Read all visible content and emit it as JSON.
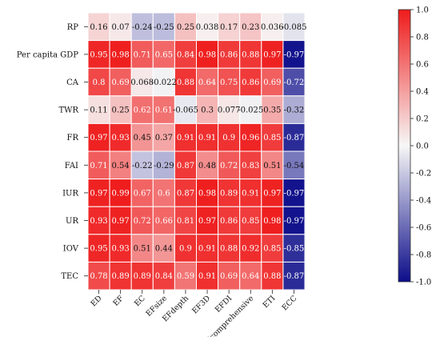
{
  "chart_data": {
    "type": "heatmap",
    "title": "",
    "x_labels": [
      "ED",
      "EF",
      "EC",
      "EFsize",
      "EFdepth",
      "EF3D",
      "EFDI",
      "Icomprehensive",
      "ETI",
      "ECC"
    ],
    "y_labels": [
      "RP",
      "Per capita GDP",
      "CA",
      "TWR",
      "FR",
      "FAI",
      "IUR",
      "UR",
      "IOV",
      "TEC"
    ],
    "values": [
      [
        0.16,
        0.07,
        -0.24,
        -0.25,
        0.25,
        0.038,
        0.17,
        0.23,
        0.036,
        -0.085
      ],
      [
        0.95,
        0.98,
        0.71,
        0.65,
        0.84,
        0.98,
        0.86,
        0.88,
        0.97,
        -0.97
      ],
      [
        0.8,
        0.69,
        0.068,
        -0.022,
        0.88,
        0.64,
        0.75,
        0.86,
        0.69,
        -0.72
      ],
      [
        0.11,
        0.25,
        0.62,
        0.61,
        -0.065,
        0.3,
        0.077,
        -0.025,
        0.35,
        -0.32
      ],
      [
        0.97,
        0.93,
        0.45,
        0.37,
        0.91,
        0.91,
        0.9,
        0.96,
        0.85,
        -0.87
      ],
      [
        0.71,
        0.54,
        -0.22,
        -0.29,
        0.87,
        0.48,
        0.72,
        0.83,
        0.51,
        -0.54
      ],
      [
        0.97,
        0.99,
        0.67,
        0.6,
        0.87,
        0.98,
        0.89,
        0.91,
        0.97,
        -0.97
      ],
      [
        0.93,
        0.97,
        0.72,
        0.66,
        0.81,
        0.97,
        0.86,
        0.85,
        0.98,
        -0.97
      ],
      [
        0.95,
        0.93,
        0.51,
        0.44,
        0.9,
        0.91,
        0.88,
        0.92,
        0.85,
        -0.85
      ],
      [
        0.78,
        0.89,
        0.89,
        0.84,
        0.59,
        0.91,
        0.69,
        0.64,
        0.88,
        -0.87
      ]
    ],
    "value_labels": [
      [
        "0.16",
        "0.07",
        "-0.24",
        "-0.25",
        "0.25",
        "0.038",
        "0.17",
        "0.23",
        "0.036",
        "-0.085"
      ],
      [
        "0.95",
        "0.98",
        "0.71",
        "0.65",
        "0.84",
        "0.98",
        "0.86",
        "0.88",
        "0.97",
        "-0.97"
      ],
      [
        "0.8",
        "0.69",
        "0.068",
        "-0.022",
        "0.88",
        "0.64",
        "0.75",
        "0.86",
        "0.69",
        "-0.72"
      ],
      [
        "0.11",
        "0.25",
        "0.62",
        "0.61",
        "-0.065",
        "0.3",
        "0.077",
        "-0.025",
        "0.35",
        "-0.32"
      ],
      [
        "0.97",
        "0.93",
        "0.45",
        "0.37",
        "0.91",
        "0.91",
        "0.9",
        "0.96",
        "0.85",
        "-0.87"
      ],
      [
        "0.71",
        "0.54",
        "-0.22",
        "-0.29",
        "0.87",
        "0.48",
        "0.72",
        "0.83",
        "0.51",
        "-0.54"
      ],
      [
        "0.97",
        "0.99",
        "0.67",
        "0.6",
        "0.87",
        "0.98",
        "0.89",
        "0.91",
        "0.97",
        "-0.97"
      ],
      [
        "0.93",
        "0.97",
        "0.72",
        "0.66",
        "0.81",
        "0.97",
        "0.86",
        "0.85",
        "0.98",
        "-0.97"
      ],
      [
        "0.95",
        "0.93",
        "0.51",
        "0.44",
        "0.9",
        "0.91",
        "0.88",
        "0.92",
        "0.85",
        "-0.85"
      ],
      [
        "0.78",
        "0.89",
        "0.89",
        "0.84",
        "0.59",
        "0.91",
        "0.69",
        "0.64",
        "0.88",
        "-0.87"
      ]
    ],
    "colorbar": {
      "range": [
        -1.0,
        1.0
      ],
      "ticks": [
        -1.0,
        -0.8,
        -0.6,
        -0.4,
        -0.2,
        0.0,
        0.2,
        0.4,
        0.6,
        0.8,
        1.0
      ],
      "tick_labels": [
        "-1.0",
        "-0.8",
        "-0.6",
        "-0.4",
        "-0.2",
        "0.0",
        "0.2",
        "0.4",
        "0.6",
        "0.8",
        "1.0"
      ],
      "low_color": "#0c0c8a",
      "mid_color": "#f7f7f7",
      "high_color": "#ef1b1b"
    },
    "grid": true,
    "cell_border_color": "#ffffff",
    "legend_position": "right"
  }
}
